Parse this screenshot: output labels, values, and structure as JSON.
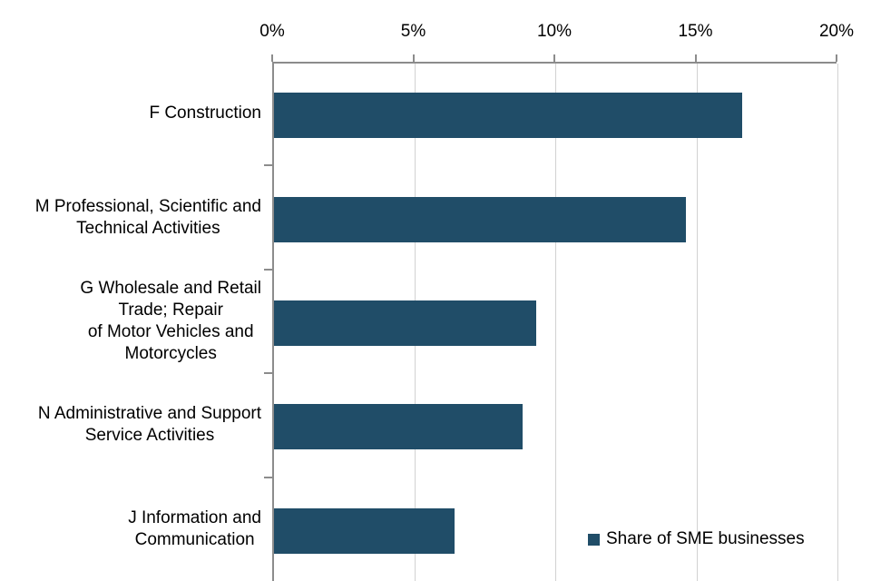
{
  "chart_data": {
    "type": "bar",
    "orientation": "horizontal",
    "title": "",
    "xlabel": "",
    "ylabel": "",
    "categories": [
      "F Construction",
      "M Professional, Scientific and\nTechnical Activities",
      "G Wholesale and Retail\nTrade; Repair\nof Motor Vehicles and\nMotorcycles",
      "N Administrative and Support\nService Activities",
      "J Information and\nCommunication"
    ],
    "series": [
      {
        "name": "Share of SME businesses",
        "values": [
          16.6,
          14.6,
          9.3,
          8.8,
          6.4
        ]
      }
    ],
    "xlim": [
      0,
      20
    ],
    "x_tick_labels": [
      "0%",
      "5%",
      "10%",
      "15%",
      "20%"
    ],
    "x_tick_values": [
      0,
      5,
      10,
      15,
      20
    ],
    "grid": true,
    "legend": {
      "label": "Share of SME businesses",
      "position": "bottom-right"
    },
    "colors": {
      "bar": "#204d68",
      "gridline": "#d2d2d2",
      "axis": "#8c8c8c",
      "text": "#000000"
    }
  }
}
